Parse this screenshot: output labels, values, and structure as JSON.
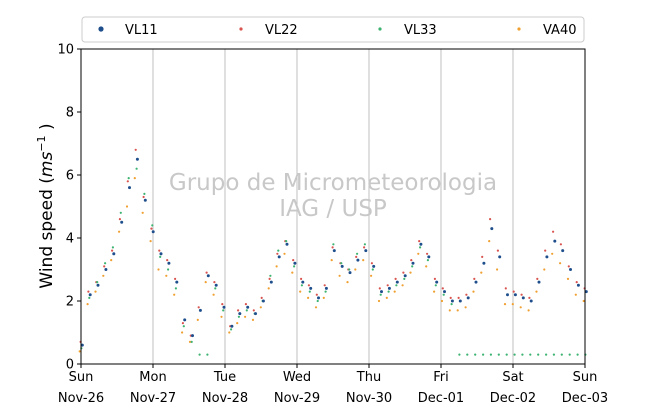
{
  "chart_data": {
    "type": "scatter",
    "ylabel_main": "Wind speed (",
    "ylabel_unit": "ms",
    "ylabel_exp": "−1",
    "ylabel_close": " )",
    "ylim": [
      0,
      10
    ],
    "yticks": [
      0,
      2,
      4,
      6,
      8,
      10
    ],
    "xlim_days": [
      0,
      7
    ],
    "xticks": [
      {
        "day": 0,
        "weekday": "Sun",
        "date": "Nov-26"
      },
      {
        "day": 1,
        "weekday": "Mon",
        "date": "Nov-27"
      },
      {
        "day": 2,
        "weekday": "Tue",
        "date": "Nov-28"
      },
      {
        "day": 3,
        "weekday": "Wed",
        "date": "Nov-29"
      },
      {
        "day": 4,
        "weekday": "Thu",
        "date": "Nov-30"
      },
      {
        "day": 5,
        "weekday": "Fri",
        "date": "Dec-01"
      },
      {
        "day": 6,
        "weekday": "Sat",
        "date": "Dec-02"
      },
      {
        "day": 7,
        "weekday": "Sun",
        "date": "Dec-03"
      }
    ],
    "grid": "vertical",
    "legend_placement": "top",
    "watermark": [
      "Grupo de Micrometeorologia",
      "IAG / USP"
    ],
    "series": [
      {
        "name": "VL11",
        "color": "#1f4e8c",
        "marker": "dot-large",
        "values": [
          0.6,
          2.2,
          2.5,
          3.0,
          3.5,
          4.5,
          5.6,
          6.5,
          5.2,
          4.2,
          3.5,
          3.2,
          2.6,
          1.4,
          0.9,
          1.7,
          2.8,
          2.5,
          1.8,
          1.2,
          1.6,
          1.8,
          1.6,
          2.0,
          2.6,
          3.4,
          3.8,
          3.2,
          2.6,
          2.4,
          2.1,
          2.4,
          3.6,
          3.1,
          2.9,
          3.3,
          3.6,
          3.1,
          2.3,
          2.4,
          2.6,
          2.8,
          3.2,
          3.8,
          3.4,
          2.6,
          2.3,
          2.0,
          2.0,
          2.1,
          2.6,
          3.2,
          4.3,
          3.4,
          2.2,
          2.2,
          2.1,
          2.0,
          2.6,
          3.4,
          3.9,
          3.6,
          3.0,
          2.5,
          2.3
        ]
      },
      {
        "name": "VL22",
        "color": "#d9534f",
        "marker": "dot-small",
        "values": [
          0.7,
          2.3,
          2.6,
          3.1,
          3.6,
          4.6,
          5.8,
          6.8,
          5.3,
          4.3,
          3.6,
          3.3,
          2.7,
          1.3,
          0.9,
          1.8,
          2.9,
          2.6,
          1.9,
          1.2,
          1.7,
          1.9,
          1.7,
          2.1,
          2.7,
          3.5,
          3.9,
          3.3,
          2.7,
          2.5,
          2.2,
          2.5,
          3.7,
          3.2,
          3.0,
          3.4,
          3.7,
          3.2,
          2.4,
          2.5,
          2.7,
          2.9,
          3.3,
          3.9,
          3.5,
          2.7,
          2.4,
          2.1,
          2.1,
          2.2,
          2.7,
          3.4,
          4.6,
          3.6,
          2.4,
          2.3,
          2.2,
          2.1,
          2.7,
          3.6,
          4.2,
          3.8,
          3.1,
          2.6,
          2.4
        ]
      },
      {
        "name": "VL33",
        "color": "#3cb371",
        "marker": "dot-small",
        "values": [
          0.5,
          2.1,
          2.6,
          3.2,
          3.7,
          4.8,
          5.9,
          6.2,
          5.4,
          4.4,
          3.4,
          3.0,
          2.4,
          1.2,
          0.7,
          0.3,
          0.3,
          2.4,
          1.7,
          1.1,
          1.5,
          1.7,
          1.6,
          2.0,
          2.8,
          3.6,
          3.9,
          3.1,
          2.5,
          2.3,
          2.0,
          2.3,
          3.8,
          3.2,
          3.0,
          3.5,
          3.8,
          3.0,
          2.2,
          2.3,
          2.5,
          2.7,
          3.1,
          3.7,
          3.3,
          2.5,
          2.2,
          1.9,
          0.3,
          0.3,
          0.3,
          0.3,
          0.3,
          0.3,
          0.3,
          0.3,
          0.3,
          0.3,
          0.3,
          0.3,
          0.3,
          0.3,
          0.3,
          0.3,
          0.3
        ]
      },
      {
        "name": "VA40",
        "color": "#f0a030",
        "marker": "dot-small",
        "values": [
          0.4,
          1.9,
          2.3,
          2.8,
          3.3,
          4.2,
          5.0,
          5.9,
          4.8,
          3.9,
          3.0,
          2.8,
          2.2,
          1.0,
          0.7,
          1.4,
          2.6,
          2.2,
          1.5,
          1.0,
          1.3,
          1.5,
          1.4,
          1.8,
          2.4,
          3.1,
          3.5,
          2.9,
          2.3,
          2.1,
          1.8,
          2.1,
          3.3,
          2.8,
          2.6,
          3.0,
          3.3,
          2.8,
          2.0,
          2.1,
          2.3,
          2.5,
          2.9,
          3.5,
          3.1,
          2.3,
          2.0,
          1.7,
          1.7,
          1.8,
          2.3,
          2.9,
          3.9,
          3.0,
          1.9,
          1.9,
          1.8,
          1.7,
          2.3,
          3.0,
          3.5,
          3.2,
          2.7,
          2.2,
          2.0
        ]
      }
    ]
  }
}
